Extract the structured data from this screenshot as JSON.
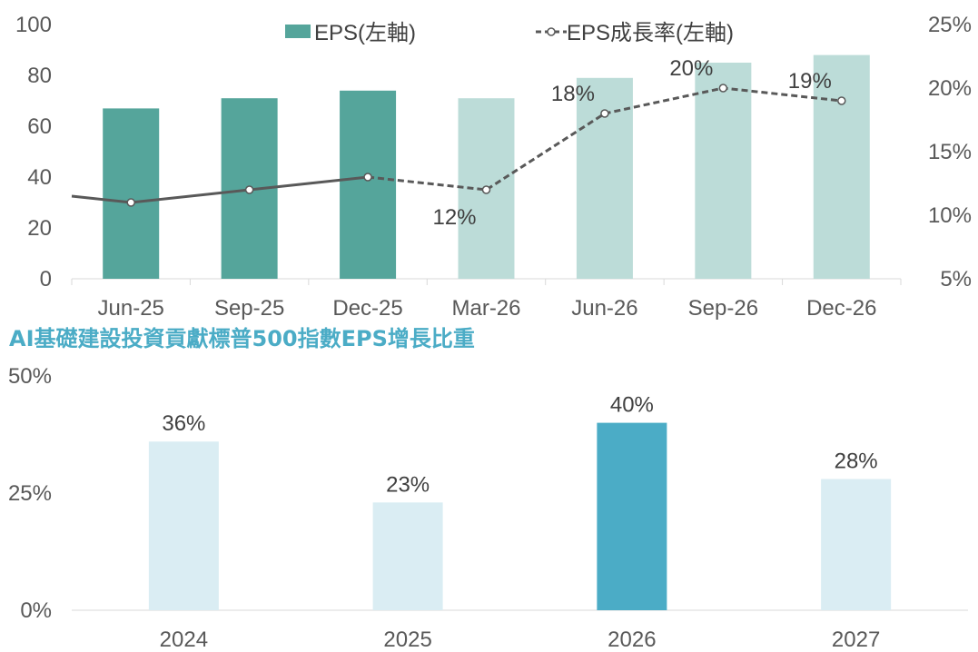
{
  "chart_data": [
    {
      "type": "bar+line",
      "title": "",
      "categories": [
        "Jun-25",
        "Sep-25",
        "Dec-25",
        "Mar-26",
        "Jun-26",
        "Sep-26",
        "Dec-26"
      ],
      "series": [
        {
          "name": "EPS(左軸)",
          "kind": "bar",
          "axis": "left",
          "values": [
            67,
            71,
            74,
            71,
            79,
            85,
            88
          ],
          "actual_count": 3
        },
        {
          "name": "EPS成長率(左軸)",
          "kind": "line",
          "axis": "right",
          "values": [
            11,
            12,
            13,
            12,
            18,
            20,
            19
          ],
          "line_start_value": 11.5,
          "data_labels": [
            "",
            "",
            "",
            "12%",
            "18%",
            "20%",
            "19%"
          ],
          "actual_count": 3
        }
      ],
      "y_left": {
        "ylim": [
          0,
          100
        ],
        "ticks": [
          "0",
          "20",
          "40",
          "60",
          "80",
          "100"
        ]
      },
      "y_right": {
        "ylim": [
          5,
          25
        ],
        "ticks": [
          "5%",
          "10%",
          "15%",
          "20%",
          "25%"
        ]
      },
      "legend": "top-center"
    },
    {
      "type": "bar",
      "title": "AI基礎建設投資貢獻標普500指數EPS增長比重",
      "categories": [
        "2024",
        "2025",
        "2026",
        "2027"
      ],
      "values": [
        36,
        23,
        40,
        28
      ],
      "data_labels": [
        "36%",
        "23%",
        "40%",
        "28%"
      ],
      "highlight_index": 2,
      "ylim": [
        0,
        50
      ],
      "ticks": [
        "0%",
        "25%",
        "50%"
      ]
    }
  ],
  "colors": {
    "eps_actual": "#55a59b",
    "eps_forecast": "#bcdcd8",
    "line": "#595959",
    "bar2_normal": "#daedf3",
    "bar2_highlight": "#4bacc6",
    "subtitle": "#4bacc6",
    "axis": "#d9d9d9"
  }
}
